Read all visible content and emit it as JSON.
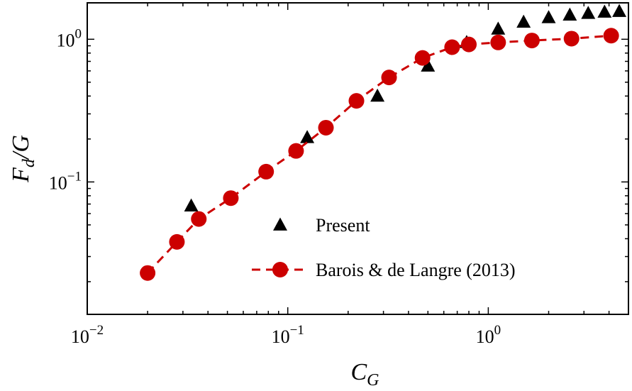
{
  "chart_data": {
    "type": "scatter",
    "xscale": "log",
    "yscale": "log",
    "xlim": [
      0.01,
      5
    ],
    "ylim": [
      0.0118,
      1.8
    ],
    "xlabel": {
      "main": "C",
      "sub": "G"
    },
    "ylabel": {
      "main": "F",
      "sub": "d",
      "rest": "/G"
    },
    "xticks": [
      {
        "base": "10",
        "exp": "−2",
        "value": 0.01
      },
      {
        "base": "10",
        "exp": "−1",
        "value": 0.1
      },
      {
        "base": "10",
        "exp": "0",
        "value": 1
      }
    ],
    "yticks": [
      {
        "base": "10",
        "exp": "−1",
        "value": 0.1
      },
      {
        "base": "10",
        "exp": "0",
        "value": 1
      }
    ],
    "legend_position": "center-right",
    "grid": false,
    "series": [
      {
        "name": "Present",
        "marker": "triangle",
        "color": "#000000",
        "line": "none",
        "points": [
          [
            0.033,
            0.068
          ],
          [
            0.125,
            0.205
          ],
          [
            0.28,
            0.4
          ],
          [
            0.5,
            0.65
          ],
          [
            0.78,
            0.95
          ],
          [
            1.12,
            1.18
          ],
          [
            1.5,
            1.32
          ],
          [
            2.0,
            1.42
          ],
          [
            2.55,
            1.48
          ],
          [
            3.15,
            1.52
          ],
          [
            3.8,
            1.55
          ],
          [
            4.5,
            1.57
          ]
        ]
      },
      {
        "name": "Barois & de Langre (2013)",
        "marker": "circle",
        "color": "#cc0000",
        "line": "dashed",
        "points": [
          [
            0.02,
            0.023
          ],
          [
            0.028,
            0.038
          ],
          [
            0.036,
            0.055
          ],
          [
            0.052,
            0.077
          ],
          [
            0.078,
            0.118
          ],
          [
            0.11,
            0.165
          ],
          [
            0.155,
            0.24
          ],
          [
            0.22,
            0.37
          ],
          [
            0.32,
            0.54
          ],
          [
            0.47,
            0.74
          ],
          [
            0.66,
            0.88
          ],
          [
            0.8,
            0.92
          ],
          [
            1.12,
            0.95
          ],
          [
            1.65,
            0.98
          ],
          [
            2.6,
            1.01
          ],
          [
            4.1,
            1.06
          ]
        ]
      }
    ]
  }
}
